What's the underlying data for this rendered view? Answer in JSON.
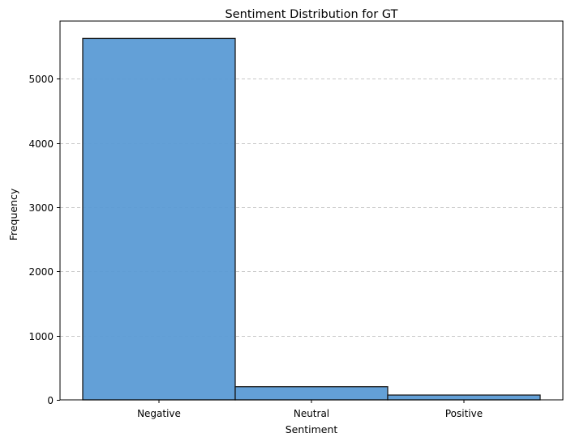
{
  "chart_data": {
    "type": "bar",
    "title": "Sentiment Distribution for GT",
    "xlabel": "Sentiment",
    "ylabel": "Frequency",
    "categories": [
      "Negative",
      "Neutral",
      "Positive"
    ],
    "values": [
      5630,
      205,
      75
    ],
    "ylim": [
      0,
      5900
    ],
    "yticks": [
      0,
      1000,
      2000,
      3000,
      4000,
      5000
    ],
    "grid": "y-dashed",
    "legend": "none",
    "colors": {
      "bar_fill": "#5b9bd5",
      "bar_stroke": "#1a1a1a",
      "grid": "#c8c8c8",
      "axis": "#000000"
    }
  }
}
